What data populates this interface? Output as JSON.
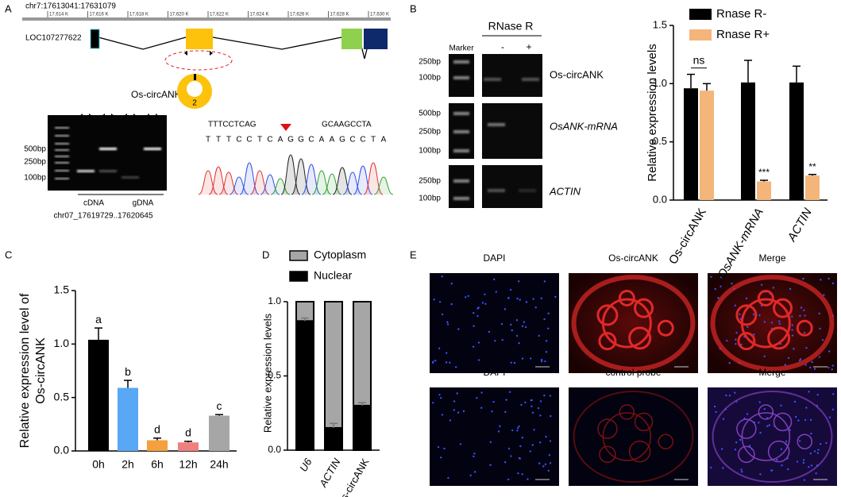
{
  "figure": {
    "panel_labels": [
      "A",
      "B",
      "C",
      "D",
      "E"
    ],
    "a": {
      "locus": "chr7:17613041:17631079",
      "ruler": [
        "17,614 K",
        "17,616 K",
        "17,618 K",
        "17,620 K",
        "17,622 K",
        "17,624 K",
        "17,626 K",
        "17,628 K",
        "17,630 K"
      ],
      "gene": "LOC107277622",
      "circ": "Os-circANK",
      "exon": "2",
      "gel_sizes": [
        "500bp",
        "250bp",
        "100bp"
      ],
      "lanes": [
        "cDNA",
        "gDNA"
      ],
      "region": "chr07_17619729..17620645",
      "seq_left": "TTTCCTCAG",
      "seq_right": "GCAAGCCTA",
      "bases": [
        "T",
        "T",
        "T",
        "C",
        "C",
        "T",
        "C",
        "A",
        "G",
        "G",
        "C",
        "A",
        "A",
        "G",
        "C",
        "C",
        "T",
        "A"
      ]
    },
    "b": {
      "treatment": "RNase R",
      "minus": "-",
      "plus": "+",
      "marker": "Marker",
      "gels": [
        {
          "sizes": [
            "250bp",
            "100bp"
          ],
          "label": "Os-circANK"
        },
        {
          "sizes": [
            "500bp",
            "250bp",
            "100bp"
          ],
          "label": "OsANK-mRNA"
        },
        {
          "sizes": [
            "250bp",
            "100bp"
          ],
          "label": "ACTIN"
        }
      ]
    },
    "e": {
      "row1": [
        "DAPI",
        "Os-circANK",
        "Merge"
      ],
      "row2": [
        "DAPI",
        "control probe",
        "Merge"
      ]
    }
  },
  "chart_data": [
    {
      "type": "bar",
      "ylabel": "Relative expression levels",
      "categories": [
        "Os-circANK",
        "OsANK-mRNA",
        "ACTIN"
      ],
      "series": [
        {
          "name": "Rnase R-",
          "color": "#000000",
          "values": [
            0.96,
            1.01,
            1.01
          ],
          "errors": [
            0.12,
            0.19,
            0.14
          ]
        },
        {
          "name": "Rnase R+",
          "color": "#f4b57a",
          "values": [
            0.94,
            0.16,
            0.21
          ],
          "errors": [
            0.06,
            0.01,
            0.01
          ]
        }
      ],
      "annotations": [
        "ns",
        "***",
        "**"
      ],
      "ylim": [
        0,
        1.5
      ],
      "yticks": [
        {
          "value": 0,
          "label": "0.0"
        },
        0.5,
        {
          "value": 1,
          "label": "1.0"
        },
        1.5
      ],
      "legend": "top-left"
    },
    {
      "type": "bar",
      "ylabel": [
        "Relative expression level of",
        "Os-circANK"
      ],
      "categories": [
        "0h",
        "2h",
        "6h",
        "12h",
        "24h"
      ],
      "values": [
        1.04,
        0.59,
        0.1,
        0.08,
        0.33
      ],
      "errors": [
        0.11,
        0.07,
        0.02,
        0.01,
        0.01
      ],
      "colors": [
        "#000000",
        "#58a8f5",
        "#f5a03c",
        "#f27f7f",
        "#a6a6a6"
      ],
      "annotations": [
        "a",
        "b",
        "d",
        "d",
        "c"
      ],
      "ylim": [
        0,
        1.5
      ],
      "yticks": [
        {
          "value": 0,
          "label": "0.0"
        },
        0.5,
        {
          "value": 1,
          "label": "1.0"
        },
        1.5
      ]
    },
    {
      "type": "stacked_bar",
      "ylabel": "Relative expression levels",
      "categories": [
        "U6",
        "ACTIN",
        "Os-circANK"
      ],
      "series": [
        {
          "name": "Nuclear",
          "color": "#000000",
          "values": [
            0.87,
            0.15,
            0.3
          ],
          "errors": [
            0.02,
            0.03,
            0.02
          ]
        },
        {
          "name": "Cytoplasm",
          "color": "#a6a6a6",
          "values": [
            0.13,
            0.85,
            0.7
          ]
        }
      ],
      "ylim": [
        0,
        1
      ],
      "yticks": [
        {
          "value": 0,
          "label": "0.0"
        },
        0.5,
        {
          "value": 1,
          "label": "1.0"
        }
      ],
      "legend": "top-left"
    }
  ]
}
